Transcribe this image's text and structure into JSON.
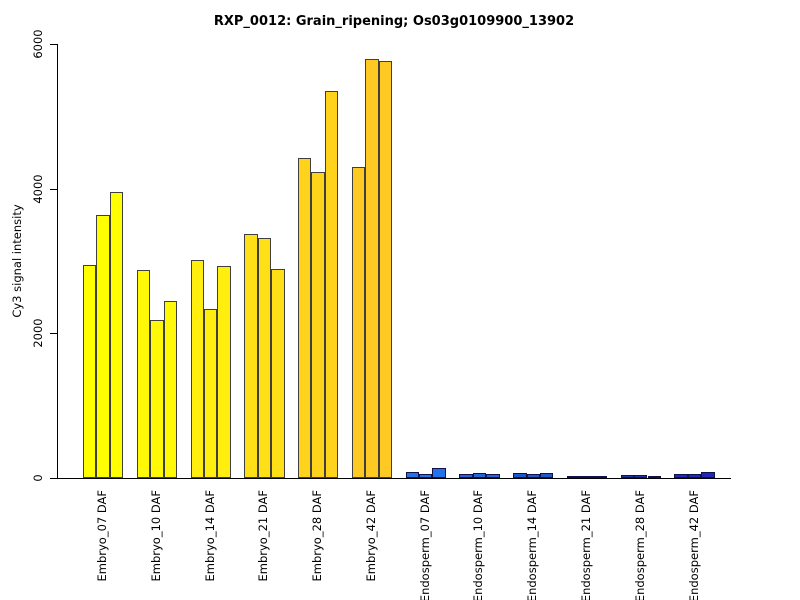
{
  "chart_data": {
    "type": "bar",
    "title": "RXP_0012: Grain_ripening; Os03g0109900_13902",
    "ylabel": "Cy3 signal intensity",
    "xlabel": "",
    "ylim": [
      0,
      6000
    ],
    "ytick_values": [
      0,
      2000,
      4000,
      6000
    ],
    "ytick_labels": [
      "0",
      "2000",
      "4000",
      "6000"
    ],
    "grid": "off",
    "legend": "none",
    "bars_per_group": 3,
    "groups": [
      {
        "label": "Embryo_07 DAF",
        "values": [
          2950,
          3630,
          3950
        ],
        "fill": "#FFFF00",
        "border": "#3F3F3F"
      },
      {
        "label": "Embryo_10 DAF",
        "values": [
          2870,
          2180,
          2450
        ],
        "fill": "#FFF807",
        "border": "#3F3F3F"
      },
      {
        "label": "Embryo_14 DAF",
        "values": [
          3010,
          2330,
          2930
        ],
        "fill": "#FFEE0E",
        "border": "#3F3F3F"
      },
      {
        "label": "Embryo_21 DAF",
        "values": [
          3370,
          3320,
          2890
        ],
        "fill": "#FFDF16",
        "border": "#3F3F3F"
      },
      {
        "label": "Embryo_28 DAF",
        "values": [
          4420,
          4230,
          5350
        ],
        "fill": "#FFD31C",
        "border": "#3F3F3F"
      },
      {
        "label": "Embryo_42 DAF",
        "values": [
          4300,
          5790,
          5760
        ],
        "fill": "#FFC923",
        "border": "#3F3F3F"
      },
      {
        "label": "Endosperm_07 DAF",
        "values": [
          85,
          60,
          140
        ],
        "fill": "#2273E8",
        "border": "#10104A"
      },
      {
        "label": "Endosperm_10 DAF",
        "values": [
          55,
          70,
          55
        ],
        "fill": "#2065DB",
        "border": "#10104A"
      },
      {
        "label": "Endosperm_14 DAF",
        "values": [
          70,
          60,
          65
        ],
        "fill": "#1E56CE",
        "border": "#10104A"
      },
      {
        "label": "Endosperm_21 DAF",
        "values": [
          30,
          30,
          25
        ],
        "fill": "#1C46BE",
        "border": "#10104A"
      },
      {
        "label": "Endosperm_28 DAF",
        "values": [
          35,
          35,
          30
        ],
        "fill": "#1A37AE",
        "border": "#10104A"
      },
      {
        "label": "Endosperm_42 DAF",
        "values": [
          55,
          55,
          85
        ],
        "fill": "#2127BE",
        "border": "#10104A"
      }
    ],
    "colors": {
      "background": "#FFFFFF",
      "axis": "#000000",
      "embryo_fill_start": "#FFFF00",
      "embryo_fill_end": "#FFC923",
      "endosperm_fill_start": "#2273E8",
      "endosperm_fill_end": "#2127BE"
    }
  }
}
